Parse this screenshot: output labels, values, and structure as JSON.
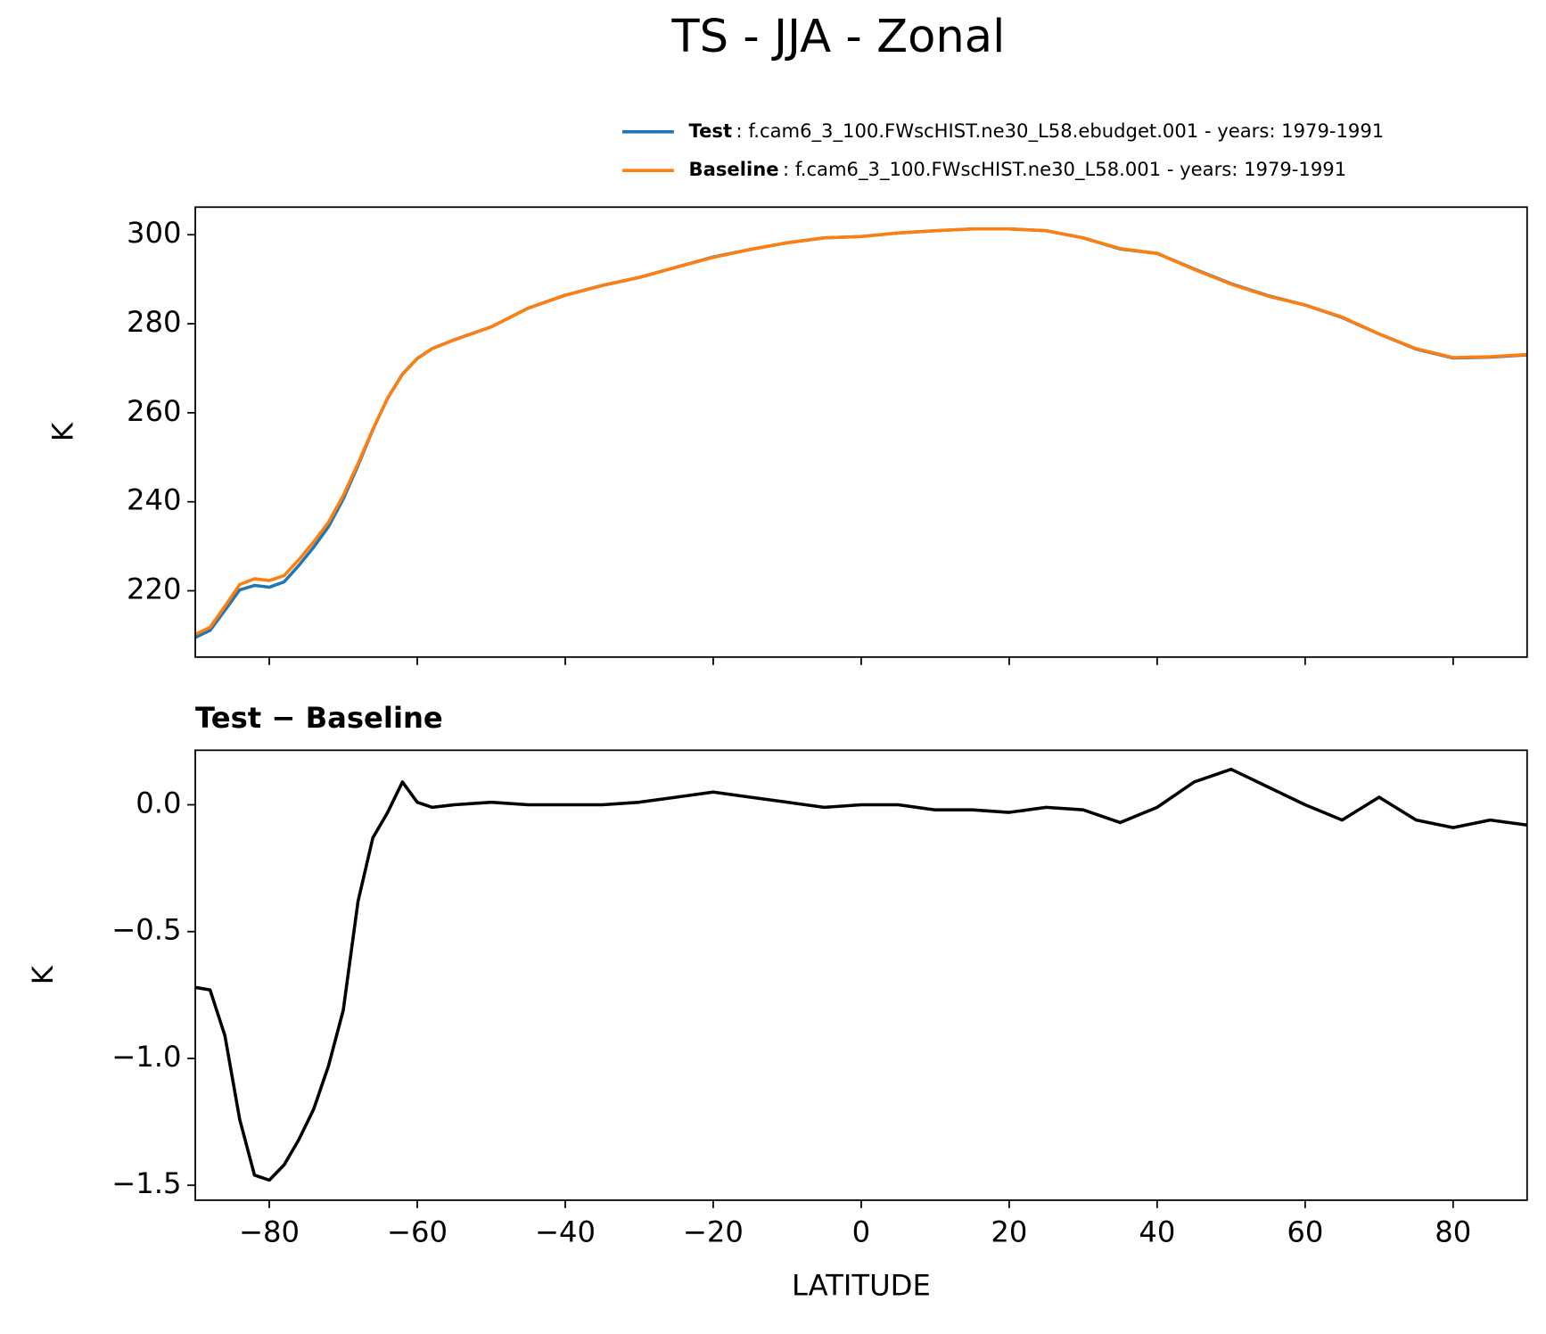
{
  "chart_data": [
    {
      "type": "line",
      "title": "TS - JJA - Zonal",
      "ylabel": "K",
      "x": [
        -90,
        -88,
        -86,
        -84,
        -82,
        -80,
        -78,
        -76,
        -74,
        -72,
        -70,
        -68,
        -66,
        -64,
        -62,
        -60,
        -58,
        -55,
        -50,
        -45,
        -40,
        -35,
        -30,
        -25,
        -20,
        -15,
        -10,
        -5,
        0,
        5,
        10,
        15,
        20,
        25,
        30,
        35,
        40,
        45,
        50,
        55,
        60,
        65,
        70,
        75,
        80,
        85,
        90
      ],
      "series": [
        {
          "name": "Test",
          "description": ": f.cam6_3_100.FWscHIST.ne30_L58.ebudget.001 - years: 1979-1991",
          "color": "#1f77b4",
          "values": [
            209.5,
            211.1,
            215.6,
            220.2,
            221.2,
            220.8,
            222.0,
            225.7,
            229.8,
            234.4,
            240.6,
            248.2,
            256.2,
            263.3,
            268.7,
            272.2,
            274.4,
            276.4,
            279.3,
            283.5,
            286.4,
            288.6,
            290.4,
            292.7,
            295.0,
            296.7,
            298.2,
            299.3,
            299.6,
            300.4,
            300.9,
            301.3,
            301.3,
            300.9,
            299.3,
            296.8,
            295.8,
            292.3,
            289.0,
            286.3,
            284.2,
            281.4,
            277.7,
            274.3,
            272.3,
            272.5,
            273.0
          ]
        },
        {
          "name": "Baseline",
          "description": ": f.cam6_3_100.FWscHIST.ne30_L58.001 - years: 1979-1991",
          "color": "#ff7f0e",
          "values": [
            210.2,
            211.8,
            216.5,
            221.4,
            222.7,
            222.3,
            223.4,
            227.0,
            231.0,
            235.4,
            241.4,
            248.6,
            256.3,
            263.3,
            268.6,
            272.2,
            274.4,
            276.4,
            279.3,
            283.5,
            286.4,
            288.6,
            290.4,
            292.7,
            294.9,
            296.7,
            298.2,
            299.3,
            299.6,
            300.4,
            300.9,
            301.3,
            301.3,
            300.9,
            299.3,
            296.9,
            295.8,
            292.2,
            288.9,
            286.2,
            284.2,
            281.5,
            277.7,
            274.4,
            272.4,
            272.6,
            273.1
          ]
        }
      ],
      "xlim": [
        -90,
        90
      ],
      "xticks": [
        -80,
        -60,
        -40,
        -20,
        0,
        20,
        40,
        60,
        80
      ],
      "ylim": [
        205.1,
        306.2
      ],
      "yticks": [
        220,
        240,
        260,
        280,
        300
      ]
    },
    {
      "type": "line",
      "title": "Test − Baseline",
      "xlabel": "LATITUDE",
      "ylabel": "K",
      "x": [
        -90,
        -88,
        -86,
        -84,
        -82,
        -80,
        -78,
        -76,
        -74,
        -72,
        -70,
        -68,
        -66,
        -64,
        -62,
        -60,
        -58,
        -55,
        -50,
        -45,
        -40,
        -35,
        -30,
        -25,
        -20,
        -15,
        -10,
        -5,
        0,
        5,
        10,
        15,
        20,
        25,
        30,
        35,
        40,
        45,
        50,
        55,
        60,
        65,
        70,
        75,
        80,
        85,
        90
      ],
      "series": [
        {
          "color": "#000000",
          "values": [
            -0.72,
            -0.73,
            -0.91,
            -1.24,
            -1.46,
            -1.48,
            -1.42,
            -1.32,
            -1.2,
            -1.03,
            -0.81,
            -0.38,
            -0.13,
            -0.03,
            0.09,
            0.01,
            -0.01,
            0.0,
            0.01,
            0.0,
            0.0,
            0.0,
            0.01,
            0.03,
            0.05,
            0.03,
            0.01,
            -0.01,
            0.0,
            0.0,
            -0.02,
            -0.02,
            -0.03,
            -0.01,
            -0.02,
            -0.07,
            -0.01,
            0.09,
            0.14,
            0.07,
            0.0,
            -0.06,
            0.03,
            -0.06,
            -0.09,
            -0.06,
            -0.08
          ]
        }
      ],
      "xlim": [
        -90,
        90
      ],
      "xticks": [
        {
          "value": -80,
          "label": "−80"
        },
        {
          "value": -60,
          "label": "−60"
        },
        {
          "value": -40,
          "label": "−40"
        },
        {
          "value": -20,
          "label": "−20"
        },
        0,
        20,
        40,
        60,
        80
      ],
      "ylim": [
        -1.559,
        0.215
      ],
      "yticks": [
        {
          "value": -1.5,
          "label": "−1.5"
        },
        {
          "value": -1.0,
          "label": "−1.0"
        },
        {
          "value": -0.5,
          "label": "−0.5"
        },
        {
          "value": 0,
          "label": "0.0"
        }
      ]
    }
  ]
}
